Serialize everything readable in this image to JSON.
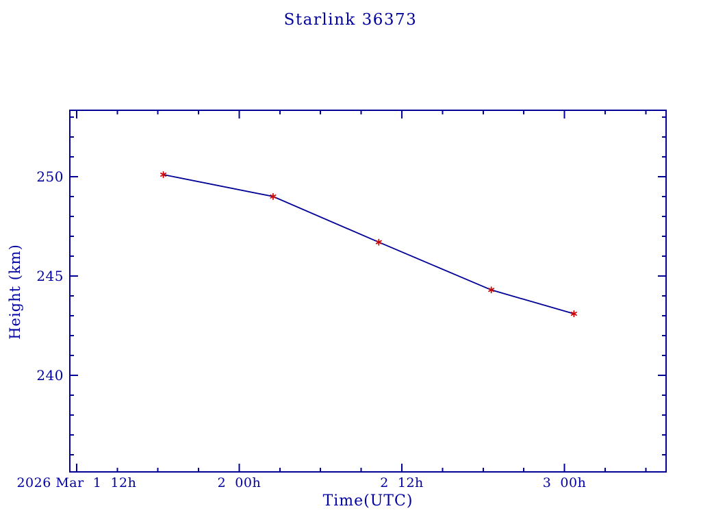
{
  "title": "Starlink 36373",
  "colors": {
    "background": "#ffffff",
    "axis": "#000096",
    "text": "#0000a0",
    "line": "#000096",
    "marker": "#cc0000"
  },
  "chart_data": {
    "type": "line",
    "title": "Starlink 36373",
    "xlabel": "Time(UTC)",
    "ylabel": "Height (km)",
    "x_unit": "hours since 2026 Mar 1 00:00 UTC",
    "xlim": [
      11.5,
      55.5
    ],
    "ylim": [
      235.14,
      253.34
    ],
    "x_major_ticks": [
      {
        "hours": 12,
        "label": "2026 Mar  1  12h"
      },
      {
        "hours": 24,
        "label": "2  00h"
      },
      {
        "hours": 36,
        "label": "2  12h"
      },
      {
        "hours": 48,
        "label": "3  00h"
      }
    ],
    "x_minor_ticks_hours": [
      15,
      18,
      21,
      27,
      30,
      33,
      39,
      42,
      45,
      51,
      54
    ],
    "y_major_ticks": [
      {
        "km": 240,
        "label": "240"
      },
      {
        "km": 245,
        "label": "245"
      },
      {
        "km": 250,
        "label": "250"
      }
    ],
    "y_minor_ticks_km": [
      236,
      237,
      238,
      239,
      241,
      242,
      243,
      244,
      246,
      247,
      248,
      249,
      251,
      252,
      253
    ],
    "grid": false,
    "legend": null,
    "series": [
      {
        "name": "height-km",
        "marker": "red-asterisk",
        "points": [
          {
            "hours": 18.4,
            "km": 250.1
          },
          {
            "hours": 26.5,
            "km": 249.0
          },
          {
            "hours": 34.3,
            "km": 246.7
          },
          {
            "hours": 42.6,
            "km": 244.3
          },
          {
            "hours": 48.7,
            "km": 243.1
          }
        ]
      }
    ]
  }
}
